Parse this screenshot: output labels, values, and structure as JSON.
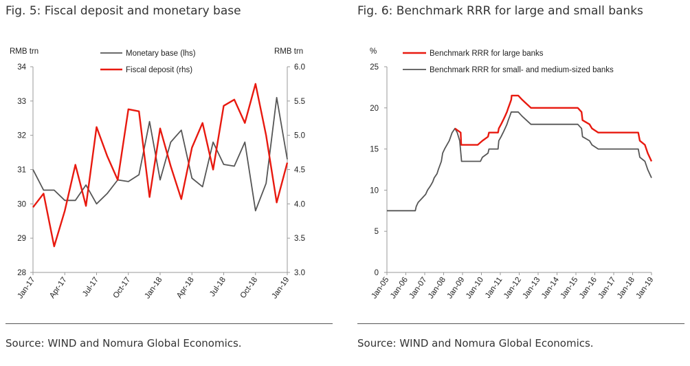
{
  "panels": {
    "left": {
      "fig_title": "Fig. 5: Fiscal deposit and monetary base",
      "source": "Source: WIND and Nomura Global Economics."
    },
    "right": {
      "fig_title": "Fig. 6: Benchmark RRR for large and small banks",
      "source": "Source: WIND and Nomura Global Economics."
    }
  },
  "chart_data": [
    {
      "type": "line",
      "title": "Fig. 5: Fiscal deposit and monetary base",
      "ylabel_left": "RMB trn",
      "ylabel_right": "RMB trn",
      "ylim_left": [
        28,
        34
      ],
      "ylim_right": [
        3.0,
        6.0
      ],
      "yticks_left": [
        "28",
        "29",
        "30",
        "31",
        "32",
        "33",
        "34"
      ],
      "yticks_right": [
        "3.0",
        "3.5",
        "4.0",
        "4.5",
        "5.0",
        "5.5",
        "6.0"
      ],
      "x_tick_labels": [
        "Jan-17",
        "Apr-17",
        "Jul-17",
        "Oct-17",
        "Jan-18",
        "Apr-18",
        "Jul-18",
        "Oct-18",
        "Jan-19"
      ],
      "x_tick_index": [
        0,
        3,
        6,
        9,
        12,
        15,
        18,
        21,
        24
      ],
      "x": [
        "2017-01",
        "2017-02",
        "2017-03",
        "2017-04",
        "2017-05",
        "2017-06",
        "2017-07",
        "2017-08",
        "2017-09",
        "2017-10",
        "2017-11",
        "2017-12",
        "2018-01",
        "2018-02",
        "2018-03",
        "2018-04",
        "2018-05",
        "2018-06",
        "2018-07",
        "2018-08",
        "2018-09",
        "2018-10",
        "2018-11",
        "2018-12",
        "2019-01"
      ],
      "legend_position": "top-center",
      "grid": false,
      "series": [
        {
          "name": "Monetary base (lhs)",
          "axis": "left",
          "color": "#555555",
          "values": [
            31.0,
            30.4,
            30.4,
            30.1,
            30.1,
            30.55,
            30.0,
            30.3,
            30.7,
            30.65,
            30.85,
            32.4,
            30.7,
            31.8,
            32.15,
            30.75,
            30.5,
            31.8,
            31.15,
            31.1,
            31.8,
            29.8,
            30.6,
            33.1,
            31.3
          ]
        },
        {
          "name": "Fiscal deposit (rhs)",
          "axis": "right",
          "color": "#e8190f",
          "values": [
            3.95,
            4.15,
            3.38,
            3.9,
            4.57,
            3.97,
            5.12,
            4.7,
            4.35,
            5.38,
            5.35,
            4.1,
            5.1,
            4.55,
            4.07,
            4.82,
            5.18,
            4.5,
            5.43,
            5.52,
            5.18,
            5.75,
            5.0,
            4.02,
            4.6
          ]
        }
      ]
    },
    {
      "type": "line",
      "title": "Fig. 6: Benchmark RRR for large and small banks",
      "ylabel": "%",
      "ylim": [
        0,
        25
      ],
      "yticks": [
        "0",
        "5",
        "10",
        "15",
        "20",
        "25"
      ],
      "x_tick_labels": [
        "Jan-05",
        "Jan-06",
        "Jan-07",
        "Jan-08",
        "Jan-09",
        "Jan-10",
        "Jan-11",
        "Jan-12",
        "Jan-13",
        "Jan-14",
        "Jan-15",
        "Jan-16",
        "Jan-17",
        "Jan-18",
        "Jan-19"
      ],
      "x_range": [
        2005.0,
        2019.0
      ],
      "legend_position": "top-right",
      "grid": false,
      "series": [
        {
          "name": "Benchmark RRR for large banks",
          "color": "#e8190f",
          "points": [
            [
              2008.6,
              17.5
            ],
            [
              2008.9,
              17.0
            ],
            [
              2008.93,
              15.5
            ],
            [
              2009.8,
              15.5
            ],
            [
              2010.05,
              16.0
            ],
            [
              2010.35,
              16.5
            ],
            [
              2010.4,
              17.0
            ],
            [
              2010.88,
              17.0
            ],
            [
              2010.92,
              17.5
            ],
            [
              2011.04,
              18.0
            ],
            [
              2011.15,
              18.5
            ],
            [
              2011.25,
              19.0
            ],
            [
              2011.35,
              19.5
            ],
            [
              2011.42,
              20.0
            ],
            [
              2011.5,
              20.5
            ],
            [
              2011.58,
              21.0
            ],
            [
              2011.6,
              21.5
            ],
            [
              2011.95,
              21.5
            ],
            [
              2012.15,
              21.0
            ],
            [
              2012.38,
              20.5
            ],
            [
              2012.62,
              20.0
            ],
            [
              2015.1,
              20.0
            ],
            [
              2015.3,
              19.5
            ],
            [
              2015.35,
              18.5
            ],
            [
              2015.72,
              18.0
            ],
            [
              2015.85,
              17.5
            ],
            [
              2016.18,
              17.0
            ],
            [
              2018.3,
              17.0
            ],
            [
              2018.38,
              16.0
            ],
            [
              2018.65,
              15.5
            ],
            [
              2018.8,
              14.5
            ],
            [
              2019.0,
              13.5
            ]
          ]
        },
        {
          "name": "Benchmark RRR for small- and medium-sized banks",
          "color": "#555555",
          "points": [
            [
              2005.0,
              7.5
            ],
            [
              2006.5,
              7.5
            ],
            [
              2006.55,
              8.0
            ],
            [
              2006.65,
              8.5
            ],
            [
              2006.85,
              9.0
            ],
            [
              2007.05,
              9.5
            ],
            [
              2007.15,
              10.0
            ],
            [
              2007.3,
              10.5
            ],
            [
              2007.42,
              11.0
            ],
            [
              2007.5,
              11.5
            ],
            [
              2007.65,
              12.0
            ],
            [
              2007.72,
              12.5
            ],
            [
              2007.8,
              13.0
            ],
            [
              2007.88,
              13.5
            ],
            [
              2007.95,
              14.5
            ],
            [
              2008.05,
              15.0
            ],
            [
              2008.3,
              16.0
            ],
            [
              2008.45,
              17.0
            ],
            [
              2008.6,
              17.5
            ],
            [
              2008.72,
              17.0
            ],
            [
              2008.85,
              16.0
            ],
            [
              2008.93,
              14.0
            ],
            [
              2008.95,
              13.5
            ],
            [
              2009.95,
              13.5
            ],
            [
              2010.05,
              14.0
            ],
            [
              2010.35,
              14.5
            ],
            [
              2010.4,
              15.0
            ],
            [
              2010.88,
              15.0
            ],
            [
              2010.92,
              16.0
            ],
            [
              2011.04,
              16.5
            ],
            [
              2011.15,
              17.0
            ],
            [
              2011.25,
              17.5
            ],
            [
              2011.35,
              18.0
            ],
            [
              2011.42,
              18.5
            ],
            [
              2011.5,
              19.0
            ],
            [
              2011.58,
              19.5
            ],
            [
              2011.95,
              19.5
            ],
            [
              2012.15,
              19.0
            ],
            [
              2012.38,
              18.5
            ],
            [
              2012.62,
              18.0
            ],
            [
              2015.1,
              18.0
            ],
            [
              2015.3,
              17.5
            ],
            [
              2015.35,
              16.5
            ],
            [
              2015.72,
              16.0
            ],
            [
              2015.85,
              15.5
            ],
            [
              2016.18,
              15.0
            ],
            [
              2018.3,
              15.0
            ],
            [
              2018.38,
              14.0
            ],
            [
              2018.65,
              13.5
            ],
            [
              2018.8,
              12.5
            ],
            [
              2019.0,
              11.5
            ]
          ]
        }
      ]
    }
  ]
}
